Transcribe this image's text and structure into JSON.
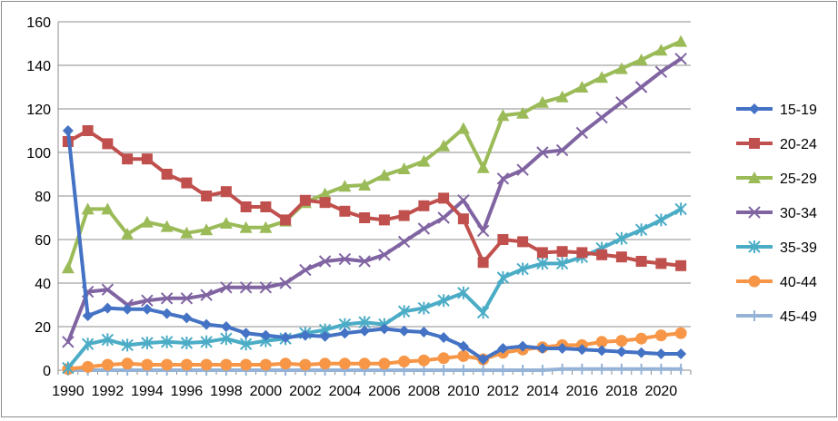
{
  "chart_data": {
    "type": "line",
    "title": "",
    "xlabel": "",
    "ylabel": "",
    "ylim": [
      0,
      160
    ],
    "yticks": [
      "0",
      "20",
      "40",
      "60",
      "80",
      "100",
      "120",
      "140",
      "160"
    ],
    "xtick_labels": [
      "1990",
      "1992",
      "1994",
      "1996",
      "1998",
      "2000",
      "2002",
      "2004",
      "2006",
      "2008",
      "2010",
      "2012",
      "2014",
      "2016",
      "2018",
      "2020"
    ],
    "x": [
      1990,
      1991,
      1992,
      1993,
      1994,
      1995,
      1996,
      1997,
      1998,
      1999,
      2000,
      2001,
      2002,
      2003,
      2004,
      2005,
      2006,
      2007,
      2008,
      2009,
      2010,
      2011,
      2012,
      2013,
      2014,
      2015,
      2016,
      2017,
      2018,
      2019,
      2020,
      2021
    ],
    "grid": "horizontal",
    "legend_position": "right",
    "series": [
      {
        "name": "15-19",
        "color": "#4472c4",
        "marker": "diamond",
        "values": [
          110,
          25,
          28.5,
          28,
          28,
          26,
          24,
          21,
          20,
          17,
          16,
          15,
          16,
          15.5,
          17,
          18,
          19,
          18,
          17.5,
          15,
          11,
          5,
          10,
          11,
          10,
          10,
          9.5,
          9,
          8.5,
          8,
          7.5,
          7.5
        ]
      },
      {
        "name": "20-24",
        "color": "#c0504d",
        "marker": "square",
        "values": [
          105,
          110,
          104,
          97,
          97,
          90,
          86,
          80,
          82,
          75,
          75,
          69,
          78,
          77,
          73,
          70,
          69,
          71,
          75.5,
          79,
          69.5,
          49.5,
          60,
          59,
          54,
          54.5,
          54,
          53,
          52,
          50,
          49,
          48
        ]
      },
      {
        "name": "25-29",
        "color": "#9bbb59",
        "marker": "triangle",
        "values": [
          47,
          74,
          74,
          62.5,
          68,
          66,
          63,
          64.5,
          67.5,
          65.5,
          65.5,
          68.5,
          77,
          81,
          84.5,
          85,
          89.5,
          92.5,
          96,
          103,
          111,
          93,
          117,
          118,
          123,
          125.5,
          130,
          134.5,
          138.5,
          142.5,
          147,
          151
        ]
      },
      {
        "name": "30-34",
        "color": "#8064a2",
        "marker": "x",
        "values": [
          13,
          36,
          37,
          30,
          32,
          33,
          33,
          34.5,
          38,
          38,
          38,
          40,
          46,
          50,
          51,
          50,
          53,
          59,
          65,
          70,
          78,
          64,
          88,
          92,
          100,
          101,
          109,
          116,
          123,
          130,
          137,
          143
        ]
      },
      {
        "name": "35-39",
        "color": "#4bacc6",
        "marker": "star",
        "values": [
          1,
          12,
          14,
          11.5,
          12.5,
          13,
          12.5,
          13,
          14.5,
          12,
          13.5,
          14.5,
          17,
          18.5,
          21,
          22,
          21,
          27,
          28.5,
          32,
          35.5,
          26.5,
          42.5,
          46.5,
          49,
          49,
          52,
          56,
          60.5,
          64.5,
          69,
          74
        ]
      },
      {
        "name": "40-44",
        "color": "#f79646",
        "marker": "circle",
        "values": [
          0.5,
          1.5,
          2.5,
          3,
          2.5,
          2.5,
          2.5,
          2.5,
          2.5,
          2.5,
          2.5,
          3,
          2.5,
          3,
          3,
          3,
          3,
          4,
          4.5,
          5.5,
          6.5,
          5,
          8,
          9.5,
          10.5,
          11.5,
          11.5,
          13,
          13.5,
          14.5,
          16,
          17
        ]
      },
      {
        "name": "45-49",
        "color": "#95b3d7",
        "marker": "plus",
        "values": [
          0,
          0,
          0,
          0,
          0,
          0,
          0,
          0,
          0,
          0,
          0,
          0,
          0,
          0,
          0,
          0,
          0,
          0,
          0,
          0,
          0,
          0,
          0,
          0,
          0,
          0.5,
          0.5,
          0.5,
          0.5,
          0.5,
          0.5,
          0.5
        ]
      }
    ]
  }
}
